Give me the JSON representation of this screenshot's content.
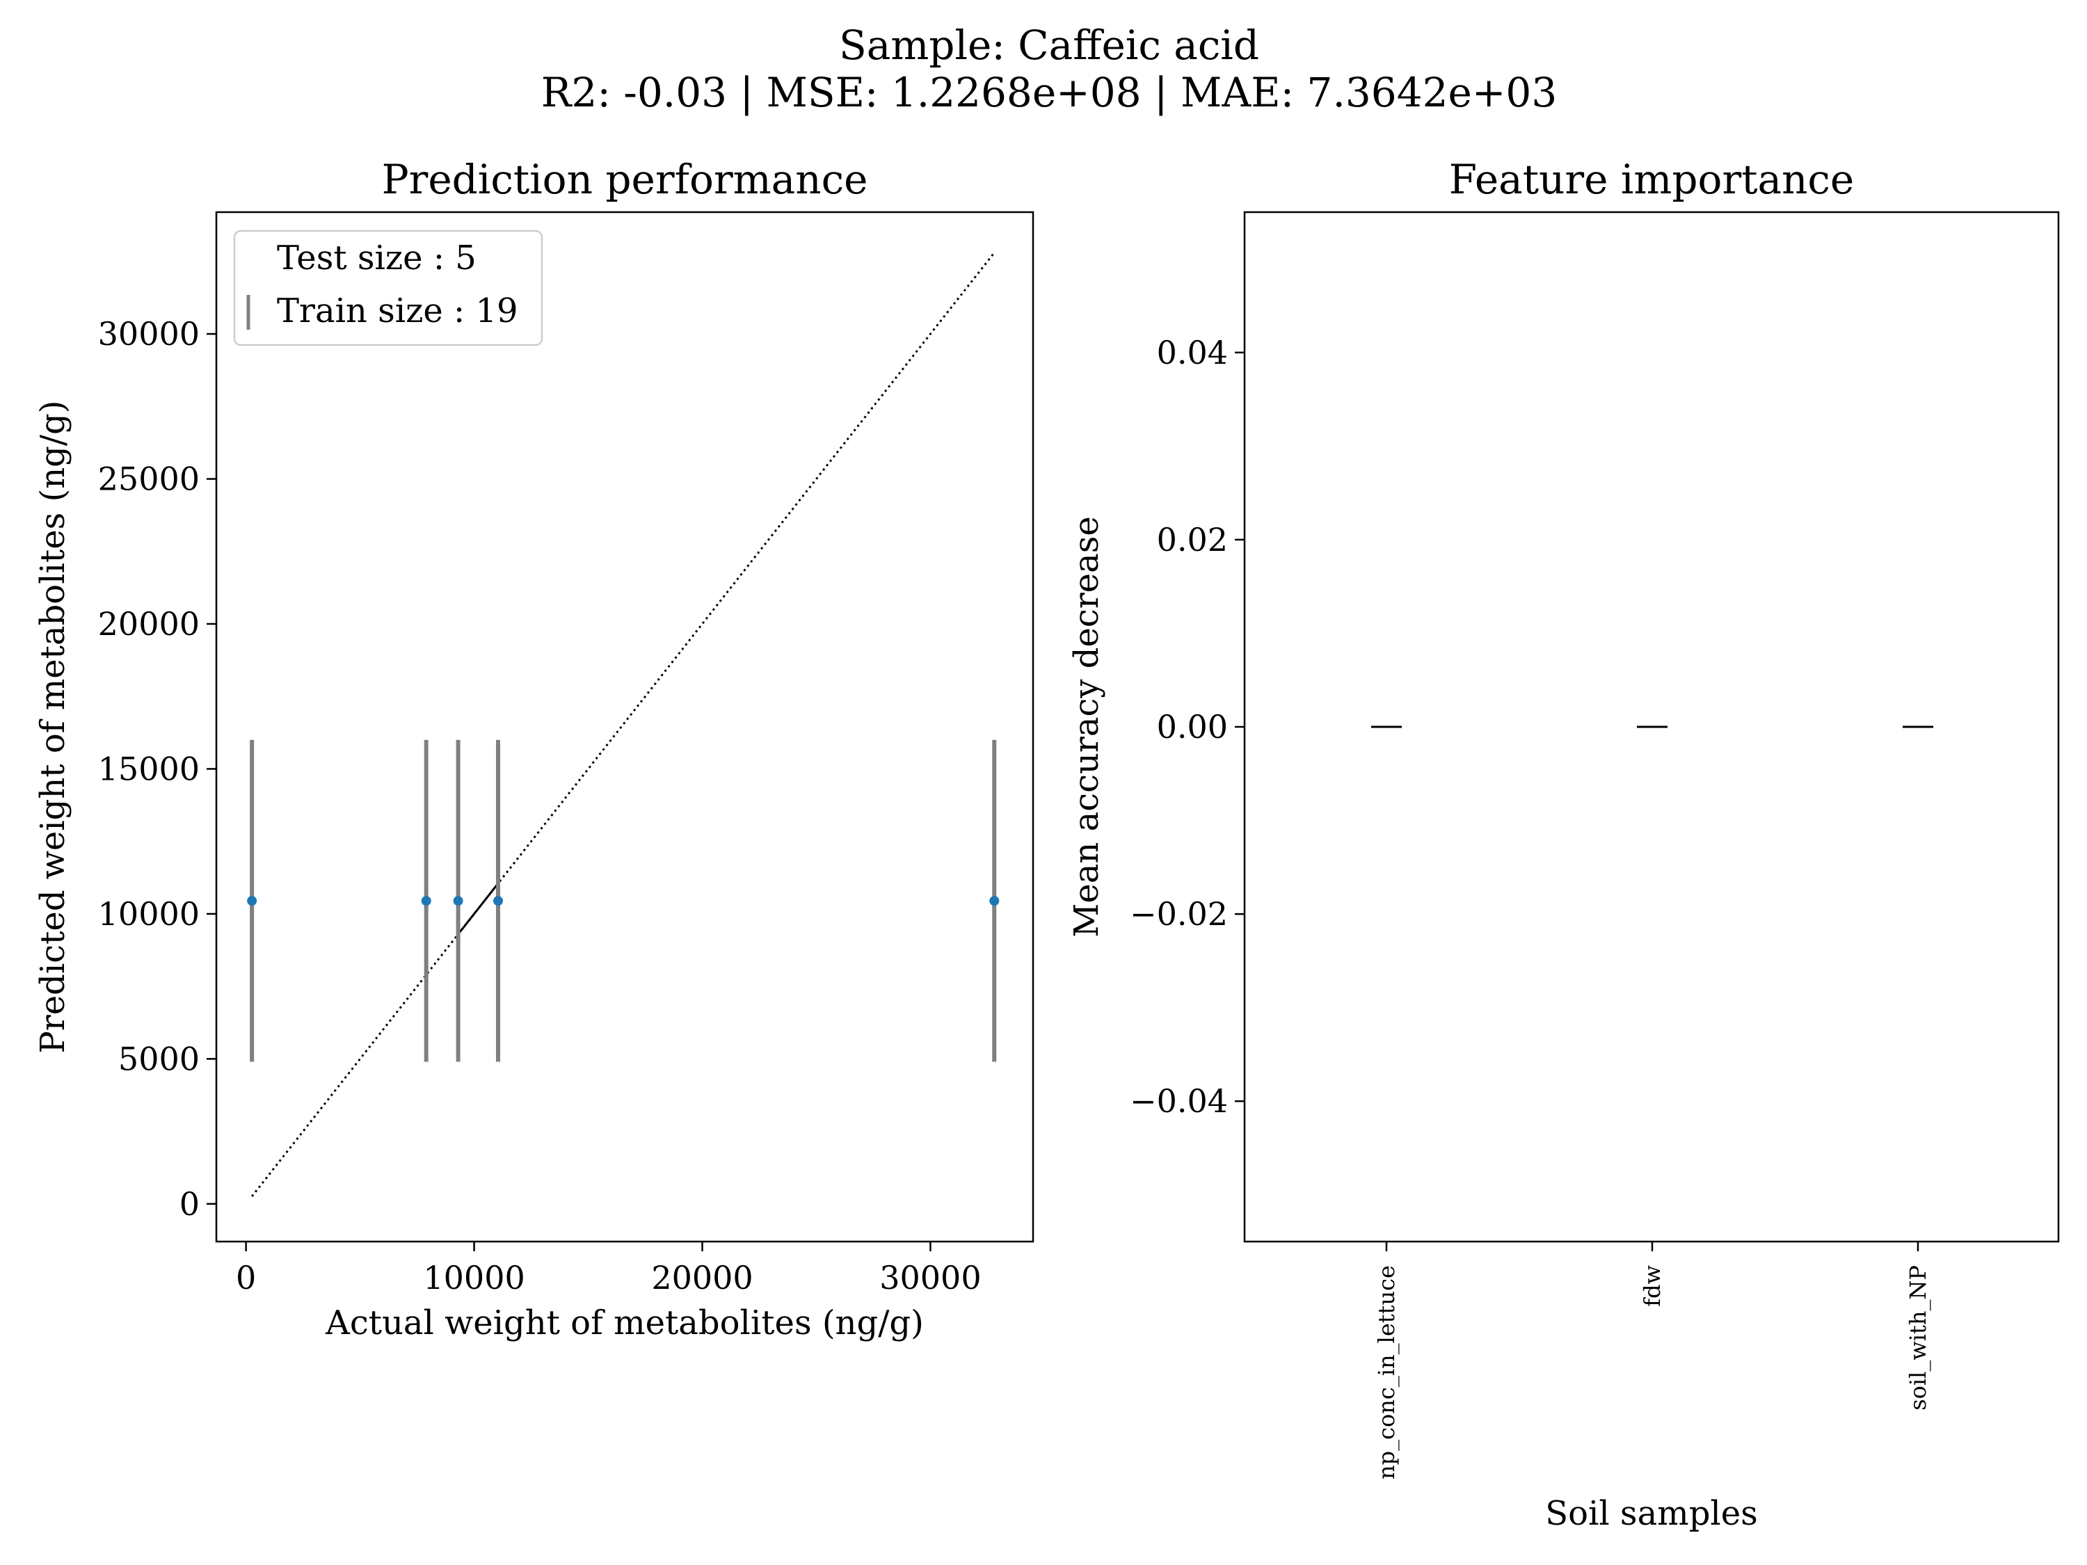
{
  "figure": {
    "title_line1": "Sample: Caffeic acid",
    "title_line2": "R2: -0.03 | MSE: 1.2268e+08 | MAE: 7.3642e+03"
  },
  "chart_data": [
    {
      "type": "scatter",
      "title": "Prediction performance",
      "xlabel": "Actual weight of metabolites (ng/g)",
      "ylabel": "Predicted weight of metabolites (ng/g)",
      "xlim": [
        -1300,
        34500
      ],
      "ylim": [
        -1300,
        34200
      ],
      "xticks": [
        0,
        10000,
        20000,
        30000
      ],
      "yticks": [
        0,
        5000,
        10000,
        15000,
        20000,
        25000,
        30000
      ],
      "grid": false,
      "legend": {
        "placement": "upper-left",
        "entries": [
          "Test size : 5",
          "Train size : 19"
        ]
      },
      "points": [
        {
          "x": 260,
          "y": 10450,
          "err_low": 4900,
          "err_high": 16000
        },
        {
          "x": 7900,
          "y": 10450,
          "err_low": 4900,
          "err_high": 16000
        },
        {
          "x": 9300,
          "y": 10450,
          "err_low": 4900,
          "err_high": 16000
        },
        {
          "x": 11050,
          "y": 10450,
          "err_low": 4900,
          "err_high": 16000
        },
        {
          "x": 32800,
          "y": 10450,
          "err_low": 4900,
          "err_high": 16000
        }
      ],
      "identity_line": {
        "x": [
          260,
          32800
        ],
        "y": [
          260,
          32800
        ],
        "style": "dotted"
      },
      "fit_segment": {
        "x": [
          9300,
          11050
        ],
        "y": [
          9300,
          11050
        ],
        "style": "solid"
      },
      "colors": {
        "point": "#1f77b4",
        "errorbar": "#808080",
        "line": "#000000"
      }
    },
    {
      "type": "bar",
      "title": "Feature importance",
      "xlabel": "Soil samples",
      "ylabel": "Mean accuracy decrease",
      "categories": [
        "np_conc_in_lettuce",
        "fdw",
        "soil_with_NP"
      ],
      "values": [
        0,
        0,
        0
      ],
      "ylim": [
        -0.055,
        0.055
      ],
      "yticks": [
        -0.04,
        -0.02,
        0.0,
        0.02,
        0.04
      ],
      "ytick_labels": [
        "−0.04",
        "−0.02",
        "0.00",
        "0.02",
        "0.04"
      ],
      "grid": false
    }
  ]
}
